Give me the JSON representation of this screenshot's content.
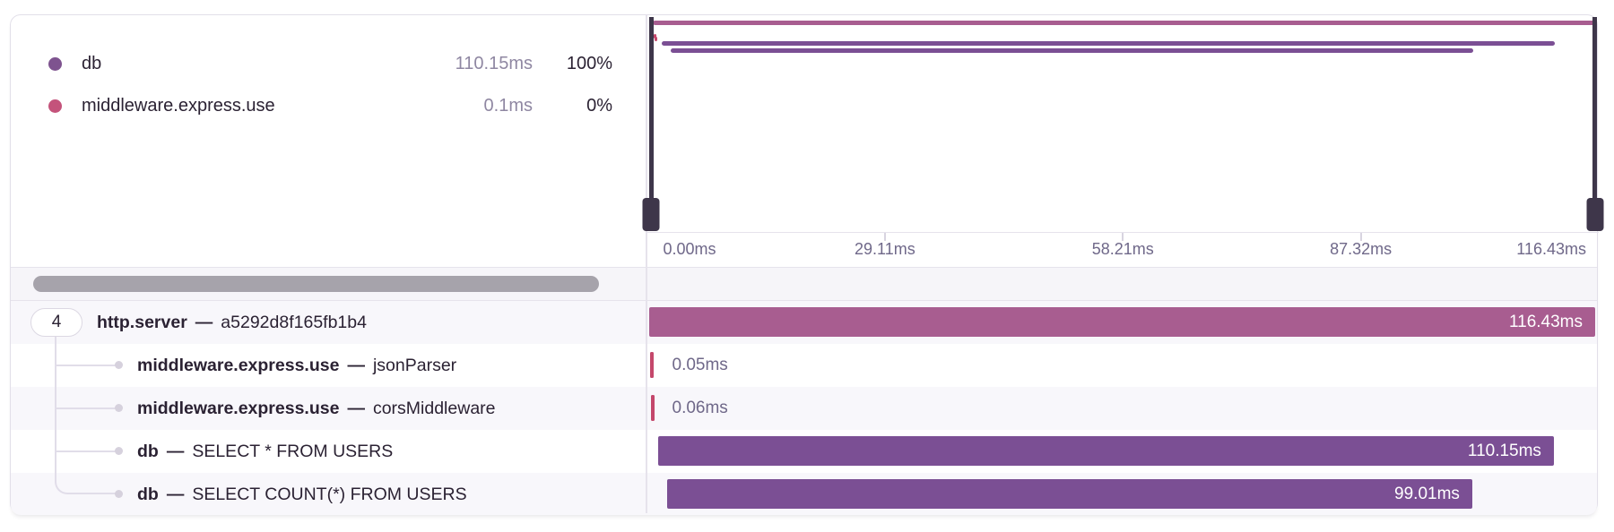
{
  "panel": {
    "type": "trace-span-waterfall"
  },
  "legend": {
    "items": [
      {
        "name": "db",
        "duration": "110.15ms",
        "percent": "100%",
        "dot_color": "#7e538f"
      },
      {
        "name": "middleware.express.use",
        "duration": "0.1ms",
        "percent": "0%",
        "dot_color": "#c4537b"
      }
    ]
  },
  "axis": {
    "total_ms": 116.43,
    "ticks": [
      "0.00ms",
      "29.11ms",
      "58.21ms",
      "87.32ms",
      "116.43ms"
    ]
  },
  "spans": [
    {
      "badge": "4",
      "op": "http.server",
      "separator": "—",
      "description": "a5292d8f165fb1b4",
      "start_ms": 0,
      "duration_ms": 116.43,
      "duration_label": "116.43ms",
      "color": "magenta",
      "label_inside": true,
      "depth": 0
    },
    {
      "op": "middleware.express.use",
      "separator": "—",
      "description": "jsonParser",
      "start_ms": 0.2,
      "duration_ms": 0.05,
      "duration_label": "0.05ms",
      "color": "red",
      "label_inside": false,
      "depth": 1
    },
    {
      "op": "middleware.express.use",
      "separator": "—",
      "description": "corsMiddleware",
      "start_ms": 0.3,
      "duration_ms": 0.06,
      "duration_label": "0.06ms",
      "color": "red",
      "label_inside": false,
      "depth": 1
    },
    {
      "op": "db",
      "separator": "—",
      "description": "SELECT * FROM USERS",
      "start_ms": 1.2,
      "duration_ms": 110.15,
      "duration_label": "110.15ms",
      "color": "purple",
      "label_inside": true,
      "depth": 1
    },
    {
      "op": "db",
      "separator": "—",
      "description": "SELECT COUNT(*) FROM USERS",
      "start_ms": 2.3,
      "duration_ms": 99.01,
      "duration_label": "99.01ms",
      "color": "purple",
      "label_inside": true,
      "depth": 1
    }
  ],
  "colors": {
    "magenta": "#a85d90",
    "purple": "#7b4f94",
    "red": "#c4476b",
    "handle": "#3e364a",
    "row_stripe": "#f8f7fb",
    "border": "#e6e3ec",
    "text_dark": "#2b2233",
    "text_muted": "#6f6889",
    "duration_muted": "#8f87a2"
  }
}
